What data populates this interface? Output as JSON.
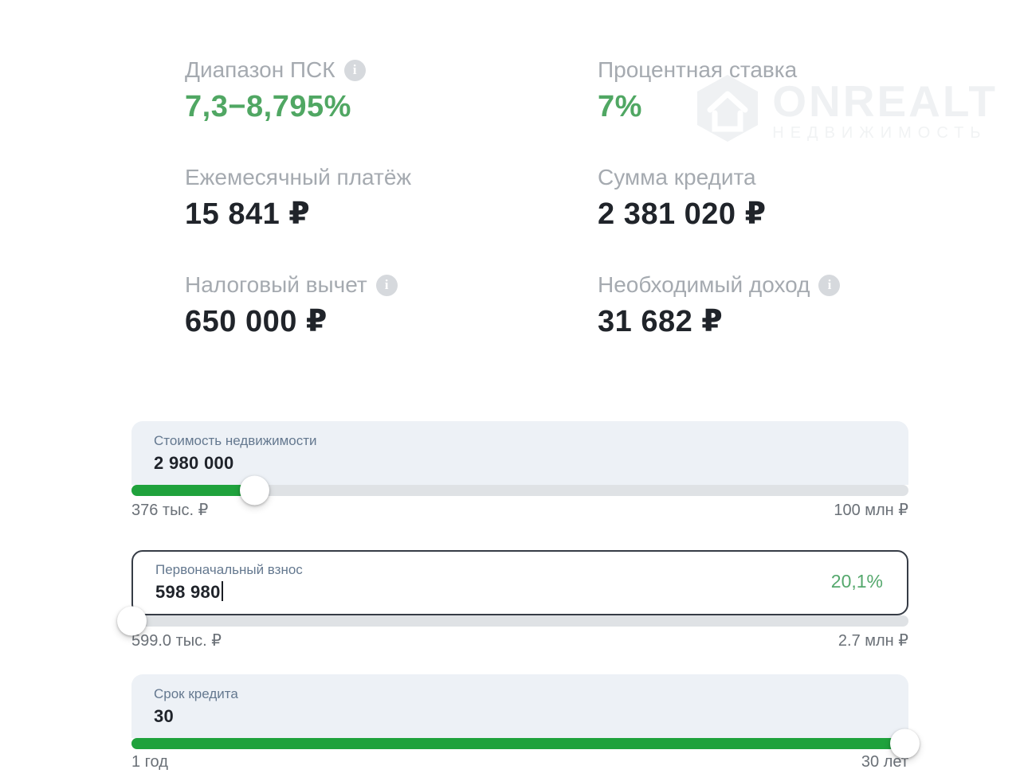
{
  "watermark": {
    "brand": "ONREALT",
    "subtitle": "НЕДВИЖИМОСТЬ"
  },
  "icons": {
    "info": "i"
  },
  "stats": [
    {
      "label": "Диапазон ПСК",
      "info": true,
      "value": "7,3−8,795%",
      "color": "green"
    },
    {
      "label": "Процентная ставка",
      "info": false,
      "value": "7%",
      "color": "green"
    },
    {
      "label": "Ежемесячный платёж",
      "info": false,
      "value": "15 841 ₽",
      "color": "dark"
    },
    {
      "label": "Сумма кредита",
      "info": false,
      "value": "2 381 020 ₽",
      "color": "dark"
    },
    {
      "label": "Налоговый вычет",
      "info": true,
      "value": "650 000 ₽",
      "color": "dark"
    },
    {
      "label": "Необходимый доход",
      "info": true,
      "value": "31 682 ₽",
      "color": "dark"
    }
  ],
  "sliders": [
    {
      "label": "Стоимость недвижимости",
      "value": "2 980 000",
      "min_label": "376 тыс. ₽",
      "max_label": "100 млн ₽",
      "percent": 15.8,
      "focused": false
    },
    {
      "label": "Первоначальный взнос",
      "value": "598 980",
      "badge": "20,1%",
      "min_label": "599.0 тыс. ₽",
      "max_label": "2.7 млн ₽",
      "percent": 0,
      "focused": true
    },
    {
      "label": "Срок кредита",
      "value": "30",
      "min_label": "1 год",
      "max_label": "30 лет",
      "percent": 99.5,
      "focused": false
    }
  ],
  "colors": {
    "accent_green": "#1fa23c",
    "value_green": "#50a763",
    "card_bg": "#edf1f6",
    "track_gray": "#dfe2e5",
    "label_gray": "#a5aab0",
    "card_label_blue_gray": "#64788f",
    "dark_value": "#20242a",
    "focused_border": "#363c46"
  }
}
